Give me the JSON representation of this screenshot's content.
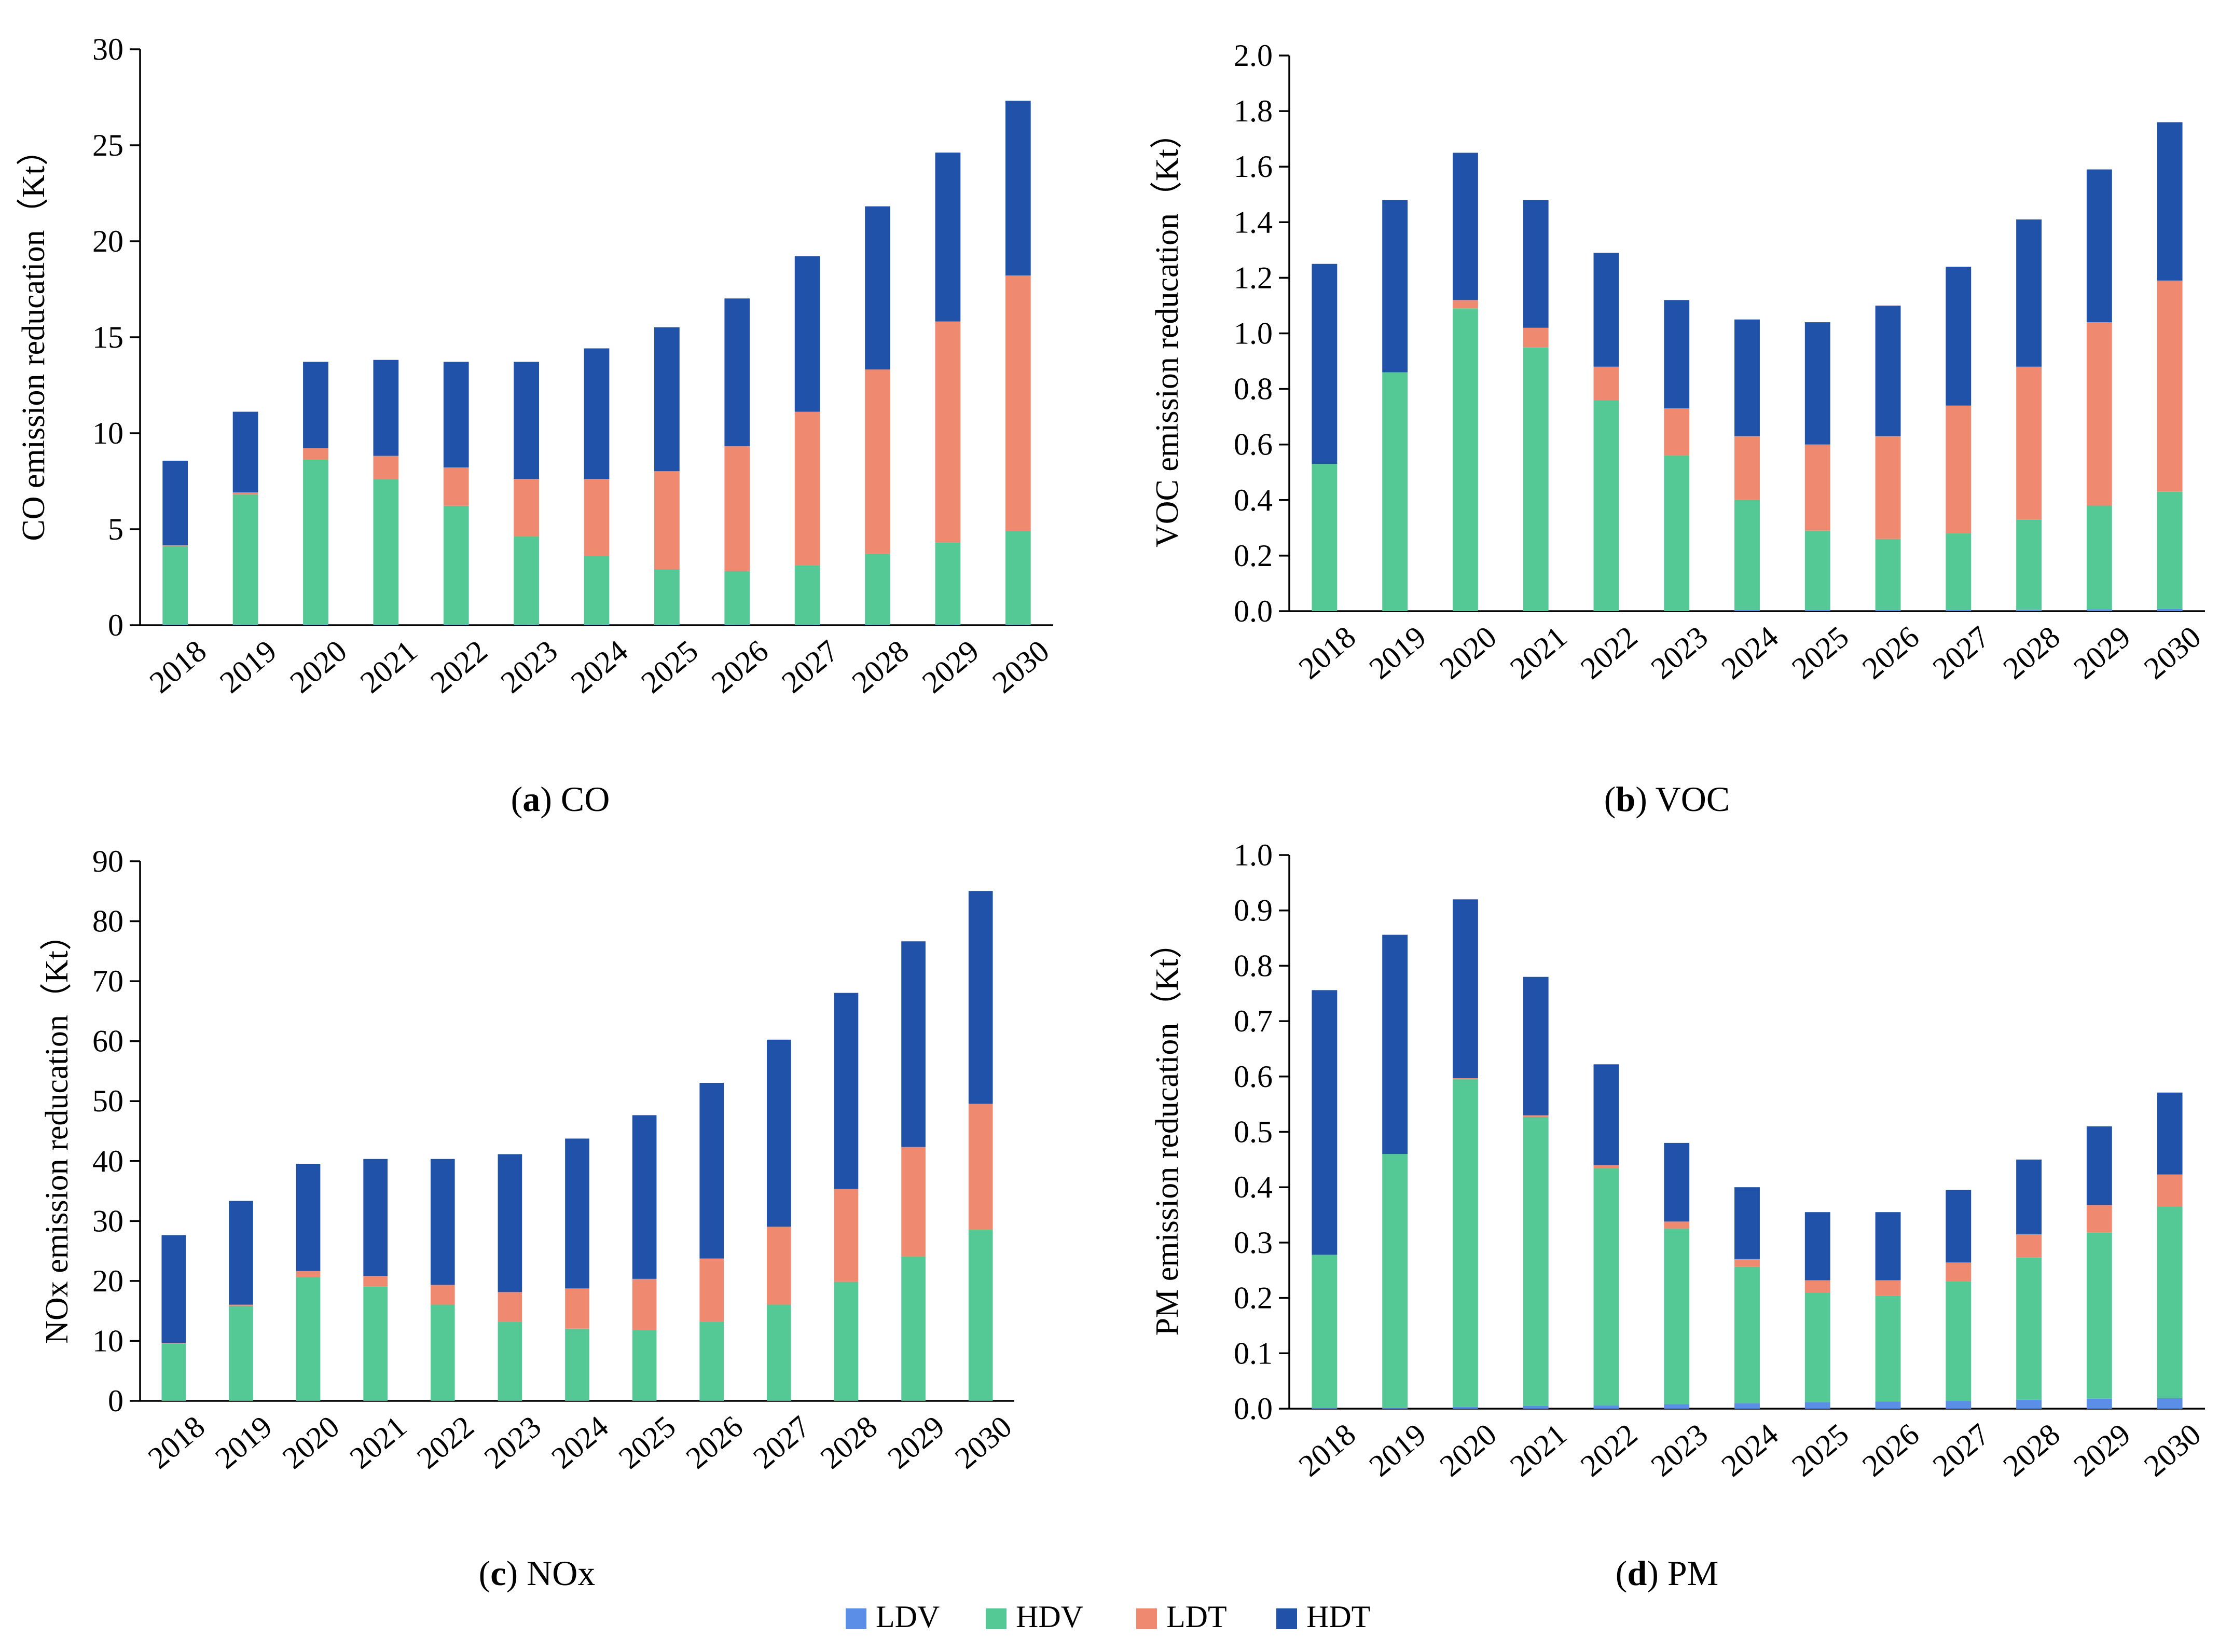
{
  "legend": [
    {
      "key": "LDV",
      "label": "LDV",
      "color": "#5b8ee6"
    },
    {
      "key": "HDV",
      "label": "HDV",
      "color": "#55c995"
    },
    {
      "key": "LDT",
      "label": "LDT",
      "color": "#ef8a70"
    },
    {
      "key": "HDT",
      "label": "HDT",
      "color": "#1f52a8"
    }
  ],
  "chart_data": [
    {
      "type": "bar",
      "stacked": true,
      "caption_letter": "a",
      "caption_text": "CO",
      "ylabel": "CO emission reducation（Kt）",
      "ylim": [
        0,
        30
      ],
      "ticks": [
        "0",
        "5",
        "10",
        "15",
        "20",
        "25",
        "30"
      ],
      "categories": [
        "2018",
        "2019",
        "2020",
        "2021",
        "2022",
        "2023",
        "2024",
        "2025",
        "2026",
        "2027",
        "2028",
        "2029",
        "2030"
      ],
      "series": [
        {
          "name": "LDV",
          "values": [
            0.02,
            0.02,
            0.02,
            0.02,
            0.02,
            0.02,
            0.02,
            0.02,
            0.02,
            0.02,
            0.02,
            0.02,
            0.02
          ]
        },
        {
          "name": "HDV",
          "values": [
            4.1,
            6.8,
            8.6,
            7.6,
            6.2,
            4.6,
            3.6,
            2.9,
            2.8,
            3.1,
            3.7,
            4.3,
            4.9
          ]
        },
        {
          "name": "LDT",
          "values": [
            0.05,
            0.1,
            0.6,
            1.2,
            2.0,
            3.0,
            4.0,
            5.1,
            6.5,
            8.0,
            9.6,
            11.5,
            13.3
          ]
        },
        {
          "name": "HDT",
          "values": [
            4.4,
            4.2,
            4.5,
            5.0,
            5.5,
            6.1,
            6.8,
            7.5,
            7.7,
            8.1,
            8.5,
            8.8,
            9.1
          ]
        }
      ]
    },
    {
      "type": "bar",
      "stacked": true,
      "caption_letter": "b",
      "caption_text": "VOC",
      "ylabel": "VOC emission reducation（Kt）",
      "ylim": [
        0,
        2.0
      ],
      "ticks": [
        "0.0",
        "0.2",
        "0.4",
        "0.6",
        "0.8",
        "1.0",
        "1.2",
        "1.4",
        "1.6",
        "1.8",
        "2.0"
      ],
      "categories": [
        "2018",
        "2019",
        "2020",
        "2021",
        "2022",
        "2023",
        "2024",
        "2025",
        "2026",
        "2027",
        "2028",
        "2029",
        "2030"
      ],
      "series": [
        {
          "name": "LDV",
          "values": [
            0.0,
            0.0,
            0.0,
            0.0,
            0.0,
            0.0,
            0.005,
            0.005,
            0.005,
            0.005,
            0.006,
            0.007,
            0.008
          ]
        },
        {
          "name": "HDV",
          "values": [
            0.53,
            0.86,
            1.09,
            0.95,
            0.76,
            0.56,
            0.395,
            0.285,
            0.255,
            0.275,
            0.324,
            0.373,
            0.422
          ]
        },
        {
          "name": "LDT",
          "values": [
            0.0,
            0.0,
            0.03,
            0.07,
            0.12,
            0.17,
            0.23,
            0.31,
            0.37,
            0.46,
            0.55,
            0.66,
            0.76
          ]
        },
        {
          "name": "HDT",
          "values": [
            0.72,
            0.62,
            0.53,
            0.46,
            0.41,
            0.39,
            0.42,
            0.44,
            0.47,
            0.5,
            0.53,
            0.55,
            0.57
          ]
        }
      ]
    },
    {
      "type": "bar",
      "stacked": true,
      "caption_letter": "c",
      "caption_text": "NOx",
      "ylabel": "NOx emission reducation（Kt）",
      "ylim": [
        0,
        90
      ],
      "ticks": [
        "0",
        "10",
        "20",
        "30",
        "40",
        "50",
        "60",
        "70",
        "80",
        "90"
      ],
      "categories": [
        "2018",
        "2019",
        "2020",
        "2021",
        "2022",
        "2023",
        "2024",
        "2025",
        "2026",
        "2027",
        "2028",
        "2029",
        "2030"
      ],
      "series": [
        {
          "name": "LDV",
          "values": [
            0.05,
            0.05,
            0.05,
            0.05,
            0.05,
            0.05,
            0.05,
            0.05,
            0.05,
            0.05,
            0.05,
            0.05,
            0.05
          ]
        },
        {
          "name": "HDV",
          "values": [
            9.5,
            15.8,
            20.6,
            19.0,
            16.0,
            13.2,
            12.0,
            11.8,
            13.2,
            16.0,
            19.8,
            24.0,
            28.5
          ]
        },
        {
          "name": "LDT",
          "values": [
            0.1,
            0.2,
            1.0,
            1.8,
            3.3,
            4.9,
            6.7,
            8.5,
            10.5,
            13.0,
            15.5,
            18.3,
            21.0
          ]
        },
        {
          "name": "HDT",
          "values": [
            18.0,
            17.3,
            17.9,
            19.5,
            21.0,
            23.0,
            25.0,
            27.3,
            29.3,
            31.2,
            32.7,
            34.3,
            35.5
          ]
        }
      ]
    },
    {
      "type": "bar",
      "stacked": true,
      "caption_letter": "d",
      "caption_text": "PM",
      "ylabel": "PM emission reducation（Kt）",
      "ylim": [
        0,
        1.0
      ],
      "ticks": [
        "0.0",
        "0.1",
        "0.2",
        "0.3",
        "0.4",
        "0.5",
        "0.6",
        "0.7",
        "0.8",
        "0.9",
        "1.0"
      ],
      "categories": [
        "2018",
        "2019",
        "2020",
        "2021",
        "2022",
        "2023",
        "2024",
        "2025",
        "2026",
        "2027",
        "2028",
        "2029",
        "2030"
      ],
      "series": [
        {
          "name": "LDV",
          "values": [
            0.001,
            0.002,
            0.003,
            0.005,
            0.006,
            0.008,
            0.01,
            0.012,
            0.013,
            0.014,
            0.016,
            0.018,
            0.019
          ]
        },
        {
          "name": "HDV",
          "values": [
            0.277,
            0.458,
            0.592,
            0.522,
            0.428,
            0.317,
            0.246,
            0.198,
            0.191,
            0.216,
            0.257,
            0.3,
            0.346
          ]
        },
        {
          "name": "LDT",
          "values": [
            0.0,
            0.0,
            0.002,
            0.003,
            0.006,
            0.013,
            0.014,
            0.022,
            0.028,
            0.034,
            0.042,
            0.05,
            0.058
          ]
        },
        {
          "name": "HDT",
          "values": [
            0.478,
            0.396,
            0.323,
            0.25,
            0.182,
            0.142,
            0.13,
            0.123,
            0.123,
            0.131,
            0.135,
            0.142,
            0.148
          ]
        }
      ]
    }
  ]
}
